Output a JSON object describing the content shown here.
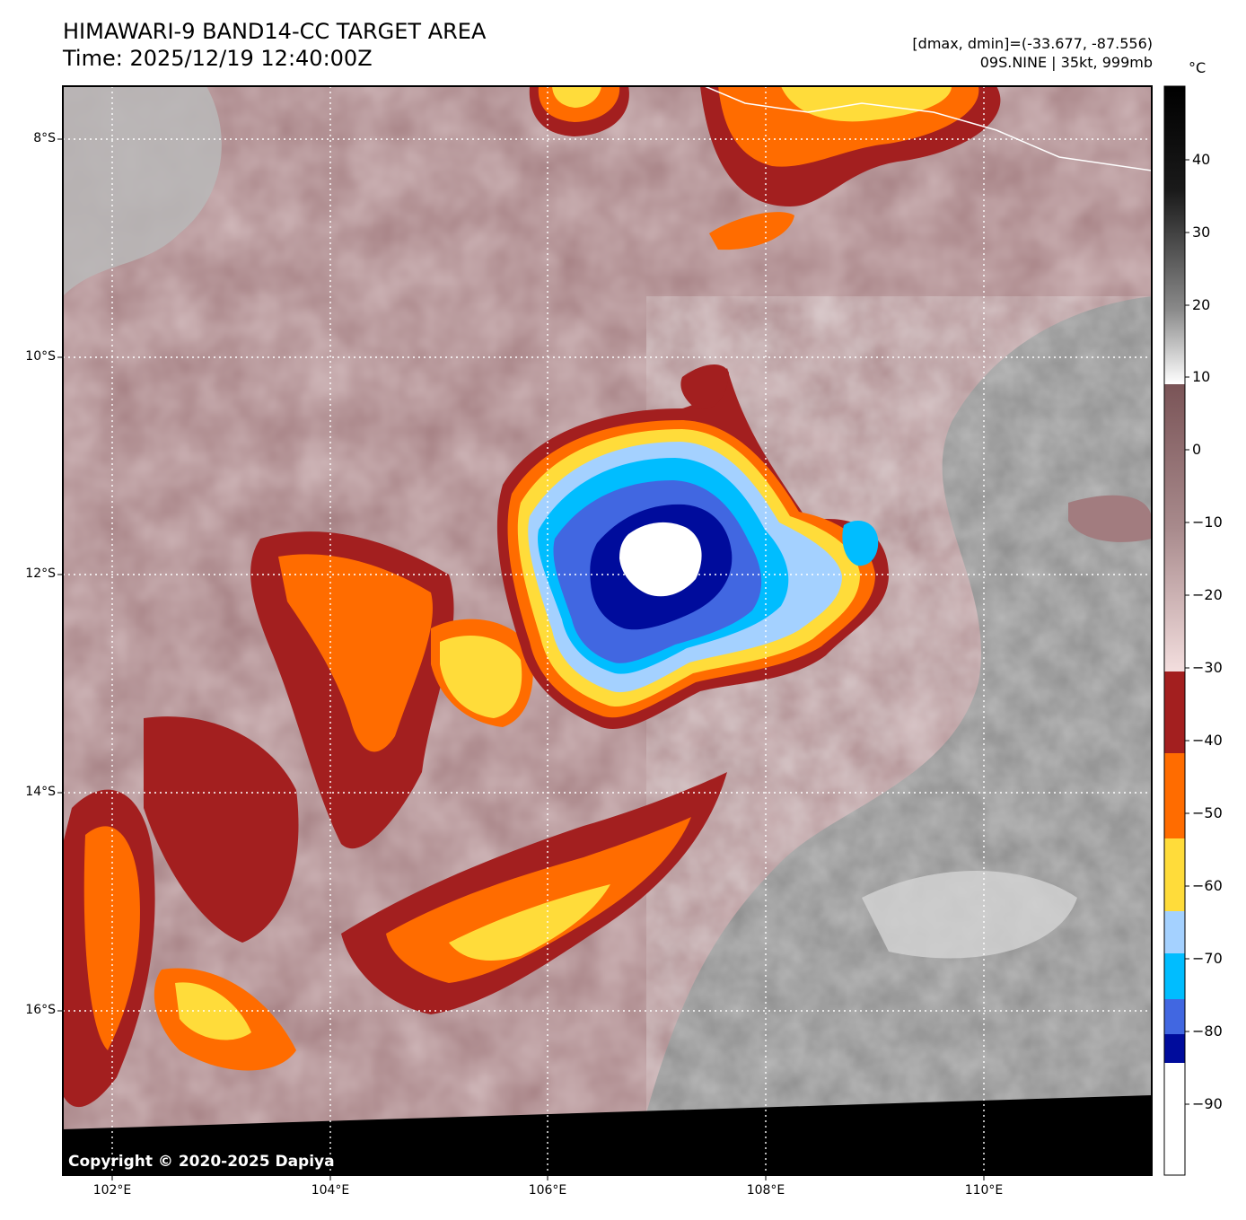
{
  "title": {
    "line1": "HIMAWARI-9 BAND14-CC TARGET AREA",
    "line2": "Time: 2025/12/19 12:40:00Z"
  },
  "meta": {
    "dmax_dmin": "[dmax, dmin]=(-33.677, -87.556)",
    "storm": "09S.NINE | 35kt, 999mb"
  },
  "colorbar": {
    "unit": "°C",
    "ticks": [
      "40",
      "30",
      "20",
      "10",
      "0",
      "−10",
      "−20",
      "−30",
      "−40",
      "−50",
      "−60",
      "−70",
      "−80",
      "−90"
    ]
  },
  "axes": {
    "lat_labels": [
      "8°S",
      "10°S",
      "12°S",
      "14°S",
      "16°S"
    ],
    "lon_labels": [
      "102°E",
      "104°E",
      "106°E",
      "108°E",
      "110°E"
    ]
  },
  "copyright": "Copyright © 2020-2025 Dapiya",
  "colors": {
    "cold_white": "#ffffff",
    "navy": "#000c9c",
    "royal_blue": "#4167e1",
    "cyan": "#00bdff",
    "light_blue": "#a4d1ff",
    "yellow": "#ffdc3a",
    "orange": "#ff6c00",
    "dark_red": "#a31f1f",
    "pink": "#f2d1d3",
    "mauve": "#a27c7f",
    "gray": "#7a7a7a",
    "black": "#000000"
  }
}
